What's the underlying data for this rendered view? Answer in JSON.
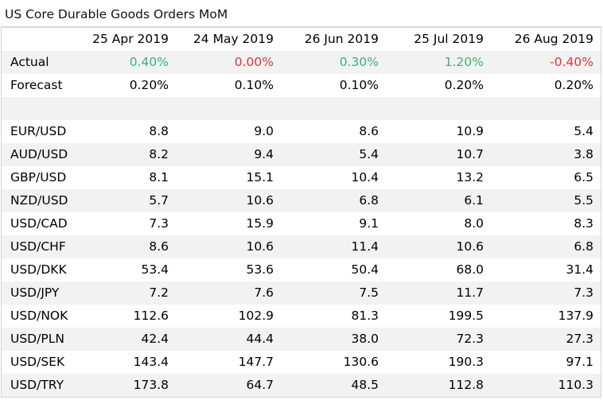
{
  "title": "US Core Durable Goods Orders MoM",
  "columns": [
    "25 Apr 2019",
    "24 May 2019",
    "26 Jun 2019",
    "25 Jul 2019",
    "26 Aug 2019"
  ],
  "actual": {
    "label": "Actual",
    "values": [
      "0.40%",
      "0.00%",
      "0.30%",
      "1.20%",
      "-0.40%"
    ],
    "status": [
      "pos",
      "neg",
      "pos",
      "pos",
      "neg"
    ]
  },
  "forecast": {
    "label": "Forecast",
    "values": [
      "0.20%",
      "0.10%",
      "0.10%",
      "0.20%",
      "0.20%"
    ]
  },
  "colors": {
    "positive": "#3bb07a",
    "negative": "#e0353b",
    "stripe": "#f2f2f2"
  },
  "pairs": [
    {
      "name": "EUR/USD",
      "values": [
        "8.8",
        "9.0",
        "8.6",
        "10.9",
        "5.4"
      ]
    },
    {
      "name": "AUD/USD",
      "values": [
        "8.2",
        "9.4",
        "5.4",
        "10.7",
        "3.8"
      ]
    },
    {
      "name": "GBP/USD",
      "values": [
        "8.1",
        "15.1",
        "10.4",
        "13.2",
        "6.5"
      ]
    },
    {
      "name": "NZD/USD",
      "values": [
        "5.7",
        "10.6",
        "6.8",
        "6.1",
        "5.5"
      ]
    },
    {
      "name": "USD/CAD",
      "values": [
        "7.3",
        "15.9",
        "9.1",
        "8.0",
        "8.3"
      ]
    },
    {
      "name": "USD/CHF",
      "values": [
        "8.6",
        "10.6",
        "11.4",
        "10.6",
        "6.8"
      ]
    },
    {
      "name": "USD/DKK",
      "values": [
        "53.4",
        "53.6",
        "50.4",
        "68.0",
        "31.4"
      ]
    },
    {
      "name": "USD/JPY",
      "values": [
        "7.2",
        "7.6",
        "7.5",
        "11.7",
        "7.3"
      ]
    },
    {
      "name": "USD/NOK",
      "values": [
        "112.6",
        "102.9",
        "81.3",
        "199.5",
        "137.9"
      ]
    },
    {
      "name": "USD/PLN",
      "values": [
        "42.4",
        "44.4",
        "38.0",
        "72.3",
        "27.3"
      ]
    },
    {
      "name": "USD/SEK",
      "values": [
        "143.4",
        "147.7",
        "130.6",
        "190.3",
        "97.1"
      ]
    },
    {
      "name": "USD/TRY",
      "values": [
        "173.8",
        "64.7",
        "48.5",
        "112.8",
        "110.3"
      ]
    }
  ]
}
